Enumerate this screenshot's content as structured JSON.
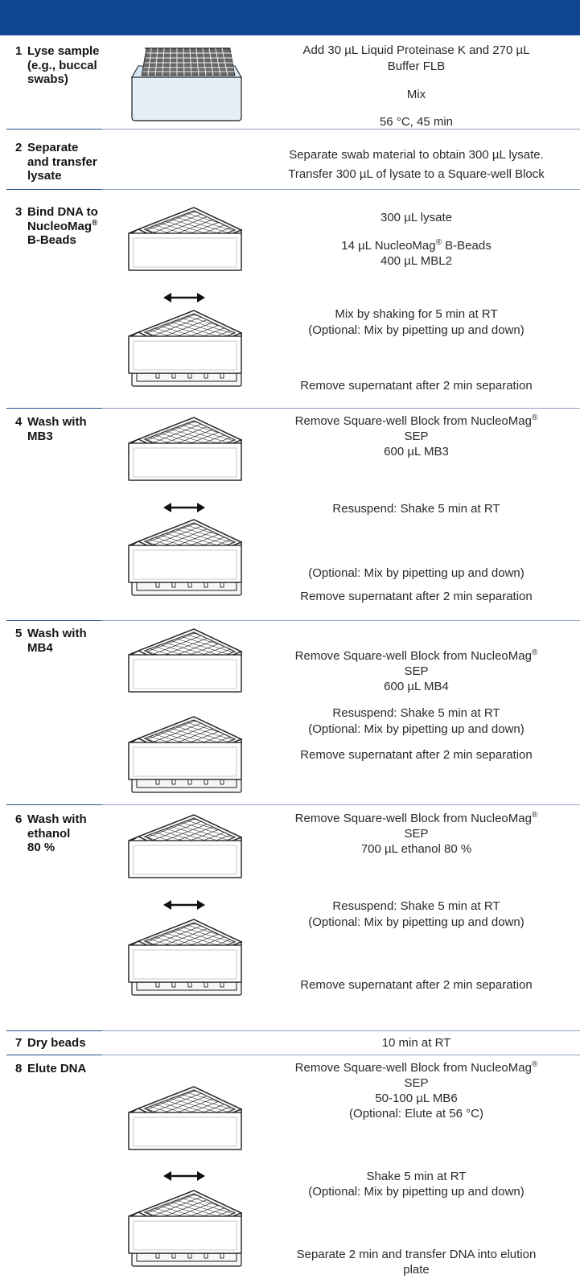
{
  "header_bar": {
    "color": "#0f4591"
  },
  "steps": [
    {
      "number": "1",
      "title_lines": [
        "Lyse sample",
        "(e.g., buccal",
        "swabs)"
      ],
      "texts": [
        "Add 30 µL Liquid Proteinase K and 270 µL",
        "Buffer FLB",
        "Mix",
        "56 °C, 45 min"
      ]
    },
    {
      "number": "2",
      "title_lines": [
        "Separate",
        "and transfer",
        "lysate"
      ],
      "texts": [
        "Separate swab material to obtain 300 µL lysate.",
        "Transfer 300 µL of lysate to a Square-well Block"
      ]
    },
    {
      "number": "3",
      "title_lines": [
        "Bind DNA to",
        "NucleoMag",
        "B-Beads"
      ],
      "texts": [
        "300 µL lysate",
        "14 µL NucleoMag",
        " B-Beads",
        "400 µL MBL2",
        "Mix by shaking for 5 min at RT",
        "(Optional: Mix by pipetting up and down)",
        "Remove supernatant after 2 min separation"
      ]
    },
    {
      "number": "4",
      "title_lines": [
        "Wash with",
        "MB3"
      ],
      "texts": [
        "Remove Square-well Block from NucleoMag",
        "SEP",
        "600 µL MB3",
        "Resuspend: Shake 5 min at RT",
        "(Optional: Mix by pipetting up and down)",
        "Remove supernatant after 2 min separation"
      ]
    },
    {
      "number": "5",
      "title_lines": [
        "Wash with",
        "MB4"
      ],
      "texts": [
        "Remove Square-well Block  from NucleoMag",
        "SEP",
        "600 µL MB4",
        "Resuspend: Shake 5 min at RT",
        "(Optional: Mix by pipetting  up and down)",
        "Remove supernatant after 2 min separation"
      ]
    },
    {
      "number": "6",
      "title_lines": [
        "Wash with",
        "ethanol",
        "80 %"
      ],
      "texts": [
        "Remove Square-well Block from NucleoMag",
        "SEP",
        "700 µL ethanol 80 %",
        "Resuspend: Shake 5 min at RT",
        "(Optional: Mix by pipetting up and down)",
        "Remove supernatant after 2 min separation"
      ]
    },
    {
      "number": "7",
      "title_lines": [
        "Dry beads"
      ],
      "texts": [
        "10 min at RT"
      ]
    },
    {
      "number": "8",
      "title_lines": [
        "Elute DNA"
      ],
      "texts": [
        "Remove Square-well Block  from NucleoMag",
        "SEP",
        "50-100 µL MB6",
        "(Optional: Elute at 56 °C)",
        "Shake 5 min at RT",
        "(Optional: Mix by pipetting up and down)",
        "Separate 2 min and transfer DNA into elution",
        "plate"
      ]
    }
  ],
  "trademark": "®"
}
